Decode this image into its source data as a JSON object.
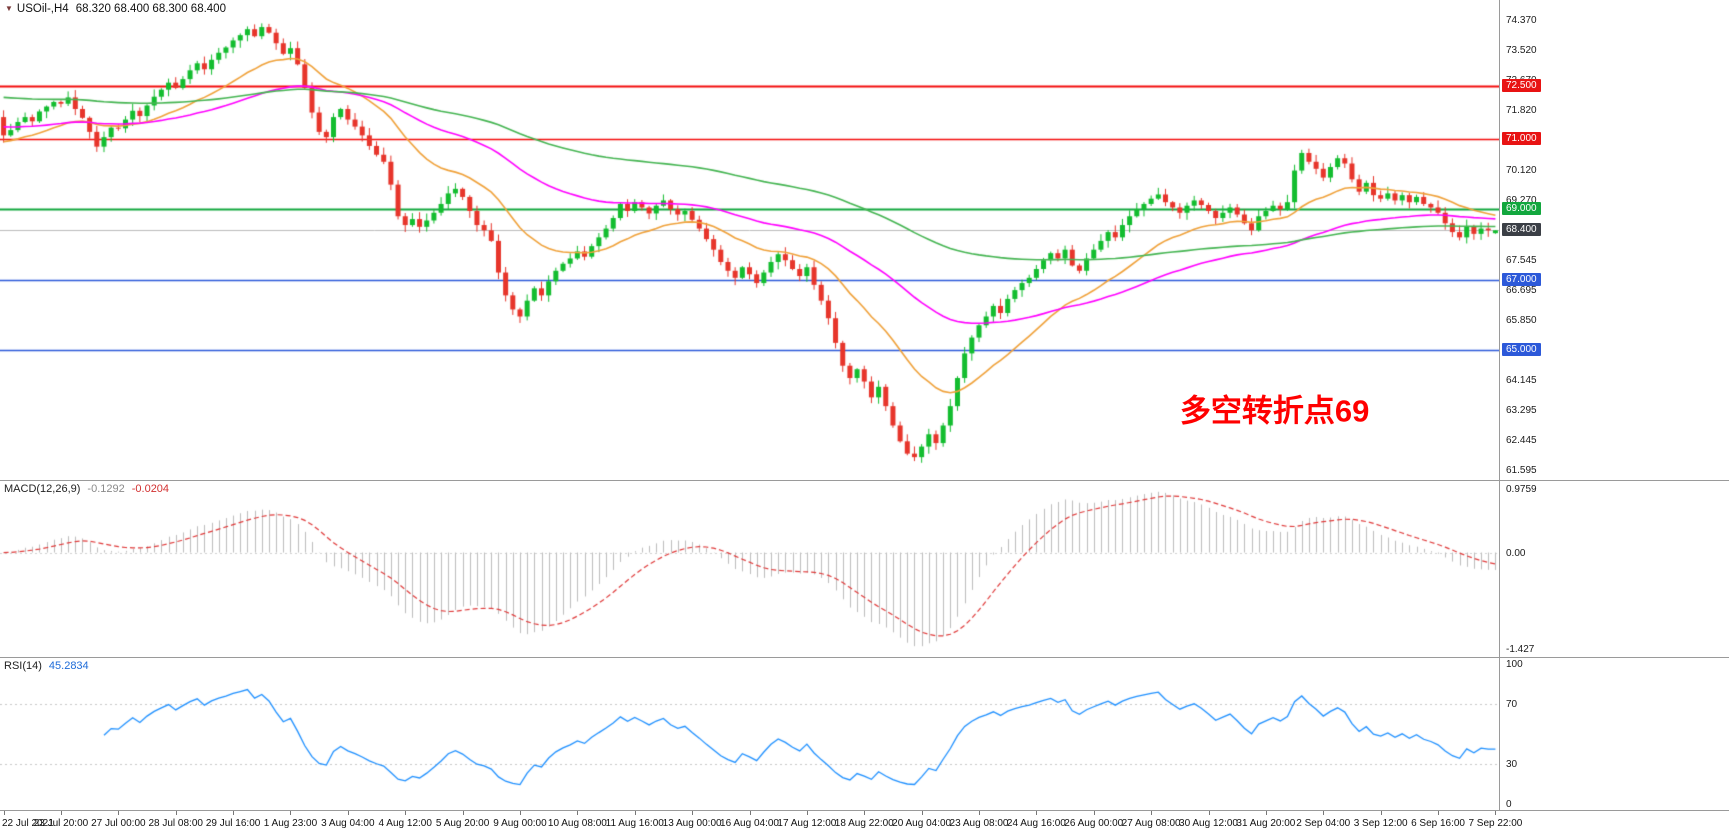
{
  "header": {
    "symbol": "USOil-,H4",
    "ohlc_text": "68.320 68.400 68.300 68.400",
    "open": "68.320",
    "high": "68.400",
    "low": "68.300",
    "close": "68.400"
  },
  "icons": {
    "symbol_dropdown": "▼"
  },
  "colors": {
    "background": "#ffffff",
    "up_candle": "#13bd2f",
    "down_candle": "#e7352b",
    "scale_text": "#1a1a1a",
    "separator": "#9a9a9a",
    "current_price_line": "#bcbcbc"
  },
  "chart_data": {
    "type": "candlestick",
    "title": "USOil-,H4",
    "symbol": "USOil-",
    "timeframe": "H4",
    "ylim": [
      61.3,
      74.95
    ],
    "y_ticks": [
      "74.370",
      "73.520",
      "72.670",
      "71.820",
      "70.970",
      "70.120",
      "69.270",
      "67.545",
      "66.695",
      "65.850",
      "64.145",
      "63.295",
      "62.445",
      "61.595"
    ],
    "price_badges": [
      {
        "text": "72.500",
        "value": 72.5,
        "bg": "#e81313"
      },
      {
        "text": "71.000",
        "value": 71.0,
        "bg": "#e81313"
      },
      {
        "text": "69.000",
        "value": 69.0,
        "bg": "#12a73e"
      },
      {
        "text": "68.400",
        "value": 68.4,
        "bg": "#3b3f46"
      },
      {
        "text": "67.000",
        "value": 67.0,
        "bg": "#2c59d9"
      },
      {
        "text": "65.000",
        "value": 65.0,
        "bg": "#2c59d9"
      }
    ],
    "hlines": [
      {
        "value": 72.5,
        "color": "#f40b0b",
        "width": 2
      },
      {
        "value": 71.0,
        "color": "#f40b0b",
        "width": 1.5
      },
      {
        "value": 69.0,
        "color": "#12a73e",
        "width": 2
      },
      {
        "value": 68.4,
        "color": "#bcbcbc",
        "width": 1
      },
      {
        "value": 67.0,
        "color": "#2c59d9",
        "width": 1.5
      },
      {
        "value": 65.0,
        "color": "#2c59d9",
        "width": 1.5
      }
    ],
    "moving_averages": [
      {
        "name": "ma-fast",
        "period": 20,
        "seed": 70.9,
        "color": "#f0a23b"
      },
      {
        "name": "ma-mid",
        "period": 55,
        "seed": 71.35,
        "color": "#ff00ff"
      },
      {
        "name": "ma-slow",
        "period": 120,
        "seed": 72.2,
        "color": "#45b552"
      }
    ],
    "bars_per_tick": 8,
    "first_open": 71.62,
    "last_candle": {
      "open": 68.32,
      "high": 68.4,
      "low": 68.3,
      "close": 68.4
    },
    "closes": [
      71.1,
      71.25,
      71.48,
      71.62,
      71.5,
      71.78,
      71.92,
      72.05,
      72.0,
      72.18,
      71.85,
      71.6,
      71.2,
      70.78,
      71.05,
      71.32,
      71.3,
      71.55,
      71.8,
      71.65,
      71.95,
      72.2,
      72.4,
      72.6,
      72.45,
      72.7,
      72.95,
      73.15,
      72.98,
      73.25,
      73.45,
      73.6,
      73.8,
      73.95,
      74.12,
      73.92,
      74.18,
      74.02,
      73.72,
      73.42,
      73.58,
      73.12,
      72.45,
      71.75,
      71.2,
      71.05,
      71.62,
      71.85,
      71.55,
      71.35,
      71.1,
      70.8,
      70.55,
      70.35,
      69.7,
      68.8,
      68.55,
      68.72,
      68.5,
      68.68,
      68.9,
      69.15,
      69.45,
      69.58,
      69.35,
      68.95,
      68.55,
      68.4,
      68.1,
      67.2,
      66.55,
      66.15,
      65.95,
      66.4,
      66.75,
      66.55,
      66.95,
      67.25,
      67.45,
      67.6,
      67.8,
      67.65,
      67.95,
      68.2,
      68.45,
      68.75,
      69.15,
      68.95,
      69.2,
      69.05,
      68.88,
      69.1,
      69.25,
      69.0,
      68.85,
      68.95,
      68.7,
      68.45,
      68.15,
      67.85,
      67.5,
      67.25,
      67.05,
      67.35,
      67.15,
      66.9,
      67.2,
      67.5,
      67.72,
      67.55,
      67.3,
      67.1,
      67.35,
      66.85,
      66.4,
      65.9,
      65.2,
      64.55,
      64.2,
      64.45,
      64.1,
      63.65,
      63.95,
      63.4,
      62.85,
      62.4,
      62.05,
      61.95,
      62.25,
      62.6,
      62.35,
      62.85,
      63.4,
      64.2,
      64.9,
      65.35,
      65.7,
      65.95,
      66.25,
      66.05,
      66.45,
      66.7,
      66.9,
      67.05,
      67.3,
      67.55,
      67.75,
      67.6,
      67.85,
      67.4,
      67.25,
      67.6,
      67.85,
      68.1,
      68.35,
      68.2,
      68.55,
      68.8,
      69.0,
      69.15,
      69.3,
      69.42,
      69.2,
      69.05,
      68.9,
      69.1,
      69.25,
      69.12,
      68.95,
      68.75,
      68.9,
      69.05,
      68.85,
      68.6,
      68.4,
      68.8,
      68.95,
      69.1,
      69.0,
      69.2,
      70.1,
      70.6,
      70.35,
      70.15,
      69.9,
      70.2,
      70.45,
      70.3,
      69.85,
      69.5,
      69.75,
      69.4,
      69.3,
      69.45,
      69.25,
      69.4,
      69.2,
      69.35,
      69.15,
      69.05,
      68.9,
      68.6,
      68.35,
      68.2,
      68.5,
      68.3,
      68.45,
      68.4,
      68.4
    ],
    "x_tick_labels": [
      "22 Jul 2021",
      "23 Jul 20:00",
      "27 Jul 00:00",
      "28 Jul 08:00",
      "29 Jul 16:00",
      "1 Aug 23:00",
      "3 Aug 04:00",
      "4 Aug 12:00",
      "5 Aug 20:00",
      "9 Aug 00:00",
      "10 Aug 08:00",
      "11 Aug 16:00",
      "13 Aug 00:00",
      "16 Aug 04:00",
      "17 Aug 12:00",
      "18 Aug 22:00",
      "20 Aug 04:00",
      "23 Aug 08:00",
      "24 Aug 16:00",
      "26 Aug 00:00",
      "27 Aug 08:00",
      "30 Aug 12:00",
      "31 Aug 20:00",
      "2 Sep 04:00",
      "3 Sep 12:00",
      "6 Sep 16:00",
      "7 Sep 22:00"
    ],
    "annotation": {
      "text": "多空转折点69",
      "color": "#ff0000",
      "bar": 164,
      "price": 63.35
    },
    "macd": {
      "label": "MACD(12,26,9)",
      "value_main": "-0.1292",
      "value_signal": "-0.0204",
      "fast": 12,
      "slow": 26,
      "signal_period": 9,
      "ticks": [
        "0.9759",
        "0.00",
        "-1.427"
      ],
      "histogram_color": "#bdbdbd",
      "signal_color": "#e03a3a",
      "zero_line_color": "#cfcfcf"
    },
    "rsi": {
      "label": "RSI(14)",
      "value": "45.2834",
      "period": 14,
      "levels": [
        70,
        30
      ],
      "ticks": [
        {
          "text": "100",
          "value": 100
        },
        {
          "text": "70",
          "value": 70
        },
        {
          "text": "30",
          "value": 30
        },
        {
          "text": "0",
          "value": 0
        }
      ],
      "line_color": "#1e90ff",
      "level_color": "#c8c8c8"
    }
  }
}
